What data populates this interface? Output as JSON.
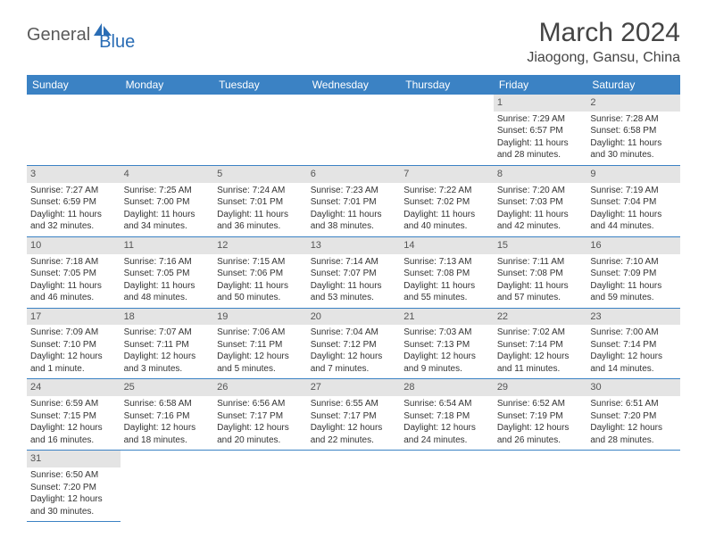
{
  "logo": {
    "general": "General",
    "blue": "Blue"
  },
  "title": "March 2024",
  "location": "Jiaogong, Gansu, China",
  "colors": {
    "header_bg": "#3b82c4",
    "header_text": "#ffffff",
    "daynum_bg": "#e4e4e4",
    "border": "#3b82c4",
    "logo_gray": "#5a5a5a",
    "logo_blue": "#2a6db5"
  },
  "weekdays": [
    "Sunday",
    "Monday",
    "Tuesday",
    "Wednesday",
    "Thursday",
    "Friday",
    "Saturday"
  ],
  "weeks": [
    [
      null,
      null,
      null,
      null,
      null,
      {
        "n": "1",
        "sr": "Sunrise: 7:29 AM",
        "ss": "Sunset: 6:57 PM",
        "dl": "Daylight: 11 hours and 28 minutes."
      },
      {
        "n": "2",
        "sr": "Sunrise: 7:28 AM",
        "ss": "Sunset: 6:58 PM",
        "dl": "Daylight: 11 hours and 30 minutes."
      }
    ],
    [
      {
        "n": "3",
        "sr": "Sunrise: 7:27 AM",
        "ss": "Sunset: 6:59 PM",
        "dl": "Daylight: 11 hours and 32 minutes."
      },
      {
        "n": "4",
        "sr": "Sunrise: 7:25 AM",
        "ss": "Sunset: 7:00 PM",
        "dl": "Daylight: 11 hours and 34 minutes."
      },
      {
        "n": "5",
        "sr": "Sunrise: 7:24 AM",
        "ss": "Sunset: 7:01 PM",
        "dl": "Daylight: 11 hours and 36 minutes."
      },
      {
        "n": "6",
        "sr": "Sunrise: 7:23 AM",
        "ss": "Sunset: 7:01 PM",
        "dl": "Daylight: 11 hours and 38 minutes."
      },
      {
        "n": "7",
        "sr": "Sunrise: 7:22 AM",
        "ss": "Sunset: 7:02 PM",
        "dl": "Daylight: 11 hours and 40 minutes."
      },
      {
        "n": "8",
        "sr": "Sunrise: 7:20 AM",
        "ss": "Sunset: 7:03 PM",
        "dl": "Daylight: 11 hours and 42 minutes."
      },
      {
        "n": "9",
        "sr": "Sunrise: 7:19 AM",
        "ss": "Sunset: 7:04 PM",
        "dl": "Daylight: 11 hours and 44 minutes."
      }
    ],
    [
      {
        "n": "10",
        "sr": "Sunrise: 7:18 AM",
        "ss": "Sunset: 7:05 PM",
        "dl": "Daylight: 11 hours and 46 minutes."
      },
      {
        "n": "11",
        "sr": "Sunrise: 7:16 AM",
        "ss": "Sunset: 7:05 PM",
        "dl": "Daylight: 11 hours and 48 minutes."
      },
      {
        "n": "12",
        "sr": "Sunrise: 7:15 AM",
        "ss": "Sunset: 7:06 PM",
        "dl": "Daylight: 11 hours and 50 minutes."
      },
      {
        "n": "13",
        "sr": "Sunrise: 7:14 AM",
        "ss": "Sunset: 7:07 PM",
        "dl": "Daylight: 11 hours and 53 minutes."
      },
      {
        "n": "14",
        "sr": "Sunrise: 7:13 AM",
        "ss": "Sunset: 7:08 PM",
        "dl": "Daylight: 11 hours and 55 minutes."
      },
      {
        "n": "15",
        "sr": "Sunrise: 7:11 AM",
        "ss": "Sunset: 7:08 PM",
        "dl": "Daylight: 11 hours and 57 minutes."
      },
      {
        "n": "16",
        "sr": "Sunrise: 7:10 AM",
        "ss": "Sunset: 7:09 PM",
        "dl": "Daylight: 11 hours and 59 minutes."
      }
    ],
    [
      {
        "n": "17",
        "sr": "Sunrise: 7:09 AM",
        "ss": "Sunset: 7:10 PM",
        "dl": "Daylight: 12 hours and 1 minute."
      },
      {
        "n": "18",
        "sr": "Sunrise: 7:07 AM",
        "ss": "Sunset: 7:11 PM",
        "dl": "Daylight: 12 hours and 3 minutes."
      },
      {
        "n": "19",
        "sr": "Sunrise: 7:06 AM",
        "ss": "Sunset: 7:11 PM",
        "dl": "Daylight: 12 hours and 5 minutes."
      },
      {
        "n": "20",
        "sr": "Sunrise: 7:04 AM",
        "ss": "Sunset: 7:12 PM",
        "dl": "Daylight: 12 hours and 7 minutes."
      },
      {
        "n": "21",
        "sr": "Sunrise: 7:03 AM",
        "ss": "Sunset: 7:13 PM",
        "dl": "Daylight: 12 hours and 9 minutes."
      },
      {
        "n": "22",
        "sr": "Sunrise: 7:02 AM",
        "ss": "Sunset: 7:14 PM",
        "dl": "Daylight: 12 hours and 11 minutes."
      },
      {
        "n": "23",
        "sr": "Sunrise: 7:00 AM",
        "ss": "Sunset: 7:14 PM",
        "dl": "Daylight: 12 hours and 14 minutes."
      }
    ],
    [
      {
        "n": "24",
        "sr": "Sunrise: 6:59 AM",
        "ss": "Sunset: 7:15 PM",
        "dl": "Daylight: 12 hours and 16 minutes."
      },
      {
        "n": "25",
        "sr": "Sunrise: 6:58 AM",
        "ss": "Sunset: 7:16 PM",
        "dl": "Daylight: 12 hours and 18 minutes."
      },
      {
        "n": "26",
        "sr": "Sunrise: 6:56 AM",
        "ss": "Sunset: 7:17 PM",
        "dl": "Daylight: 12 hours and 20 minutes."
      },
      {
        "n": "27",
        "sr": "Sunrise: 6:55 AM",
        "ss": "Sunset: 7:17 PM",
        "dl": "Daylight: 12 hours and 22 minutes."
      },
      {
        "n": "28",
        "sr": "Sunrise: 6:54 AM",
        "ss": "Sunset: 7:18 PM",
        "dl": "Daylight: 12 hours and 24 minutes."
      },
      {
        "n": "29",
        "sr": "Sunrise: 6:52 AM",
        "ss": "Sunset: 7:19 PM",
        "dl": "Daylight: 12 hours and 26 minutes."
      },
      {
        "n": "30",
        "sr": "Sunrise: 6:51 AM",
        "ss": "Sunset: 7:20 PM",
        "dl": "Daylight: 12 hours and 28 minutes."
      }
    ],
    [
      {
        "n": "31",
        "sr": "Sunrise: 6:50 AM",
        "ss": "Sunset: 7:20 PM",
        "dl": "Daylight: 12 hours and 30 minutes."
      },
      null,
      null,
      null,
      null,
      null,
      null
    ]
  ]
}
